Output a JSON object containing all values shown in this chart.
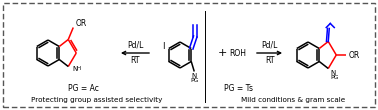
{
  "background_color": "#ffffff",
  "border_color": "#555555",
  "bottom_left_text": "Protecting group assisted selectivity",
  "bottom_right_text": "Mild conditions & gram scale",
  "left_arrow_label_top": "Pd/L",
  "left_arrow_label_bottom": "RT",
  "right_arrow_label_top": "Pd/L",
  "right_arrow_label_bottom": "RT",
  "pg_ac_label": "PG = Ac",
  "pg_ts_label": "PG = Ts",
  "plus_sign": "+",
  "roh_label": "ROH",
  "fig_width": 3.78,
  "fig_height": 1.1,
  "dpi": 100
}
